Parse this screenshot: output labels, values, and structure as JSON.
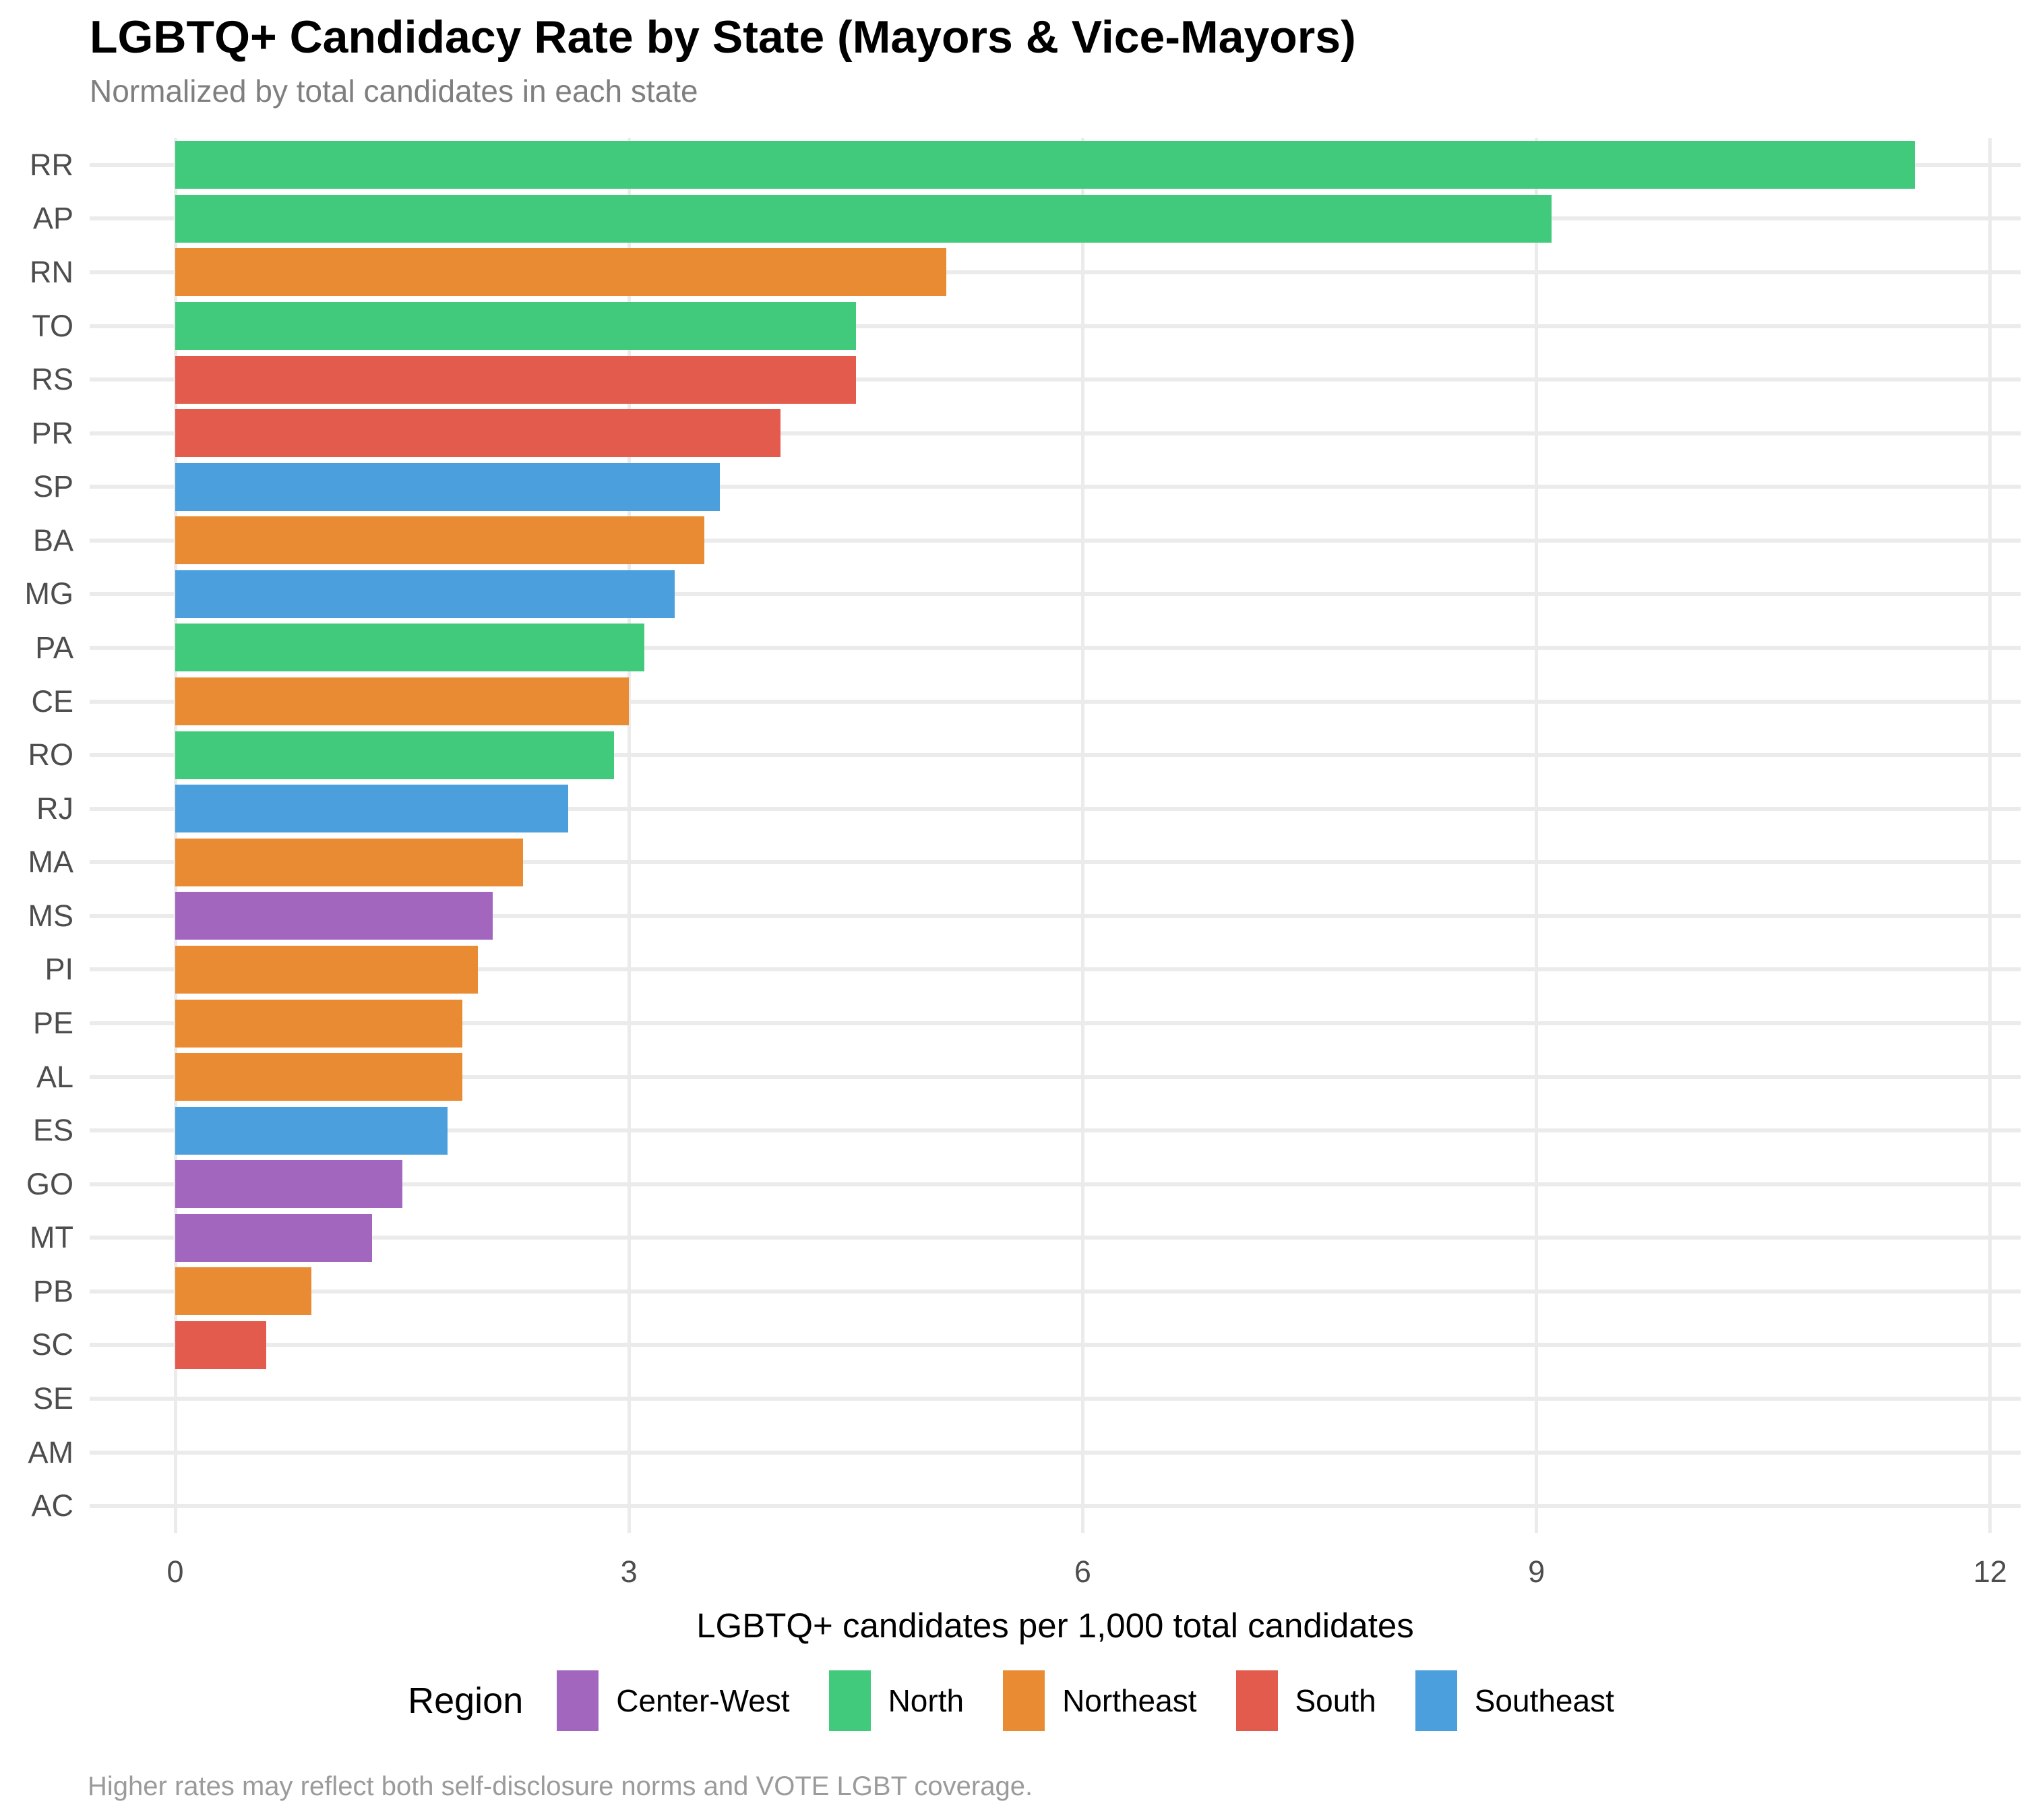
{
  "chart_data": {
    "type": "bar",
    "orientation": "horizontal",
    "title": "LGBTQ+ Candidacy Rate by State (Mayors & Vice-Mayors)",
    "subtitle": "Normalized by total candidates in each state",
    "caption": "Higher rates may reflect both self-disclosure norms and VOTE LGBT coverage.",
    "xlabel": "LGBTQ+ candidates per 1,000 total candidates",
    "ylabel": "",
    "categories": [
      "RR",
      "AP",
      "RN",
      "TO",
      "RS",
      "PR",
      "SP",
      "BA",
      "MG",
      "PA",
      "CE",
      "RO",
      "RJ",
      "MA",
      "MS",
      "PI",
      "PE",
      "AL",
      "ES",
      "GO",
      "MT",
      "PB",
      "SC",
      "SE",
      "AM",
      "AC"
    ],
    "values": [
      11.5,
      9.1,
      5.1,
      4.5,
      4.5,
      4.0,
      3.6,
      3.5,
      3.3,
      3.1,
      3.0,
      2.9,
      2.6,
      2.3,
      2.1,
      2.0,
      1.9,
      1.9,
      1.8,
      1.5,
      1.3,
      0.9,
      0.6,
      0,
      0,
      0
    ],
    "regions": [
      "North",
      "North",
      "Northeast",
      "North",
      "South",
      "South",
      "Southeast",
      "Northeast",
      "Southeast",
      "North",
      "Northeast",
      "North",
      "Southeast",
      "Northeast",
      "Center-West",
      "Northeast",
      "Northeast",
      "Northeast",
      "Southeast",
      "Center-West",
      "Center-West",
      "Northeast",
      "South",
      "Northeast",
      "North",
      "North"
    ],
    "region_colors": {
      "Center-West": "#a266bf",
      "North": "#41c97c",
      "Northeast": "#e88b33",
      "South": "#e25b4c",
      "Southeast": "#4a9fdc"
    },
    "xlim": [
      0,
      12.2
    ],
    "xticks": [
      0,
      3,
      6,
      9,
      12
    ],
    "grid": "major vertical gridlines + horizontal line per category, light gray on white",
    "legend_position": "bottom"
  },
  "legend": {
    "title": "Region",
    "items": [
      "Center-West",
      "North",
      "Northeast",
      "South",
      "Southeast"
    ]
  },
  "grid_color": "#ebebeb"
}
